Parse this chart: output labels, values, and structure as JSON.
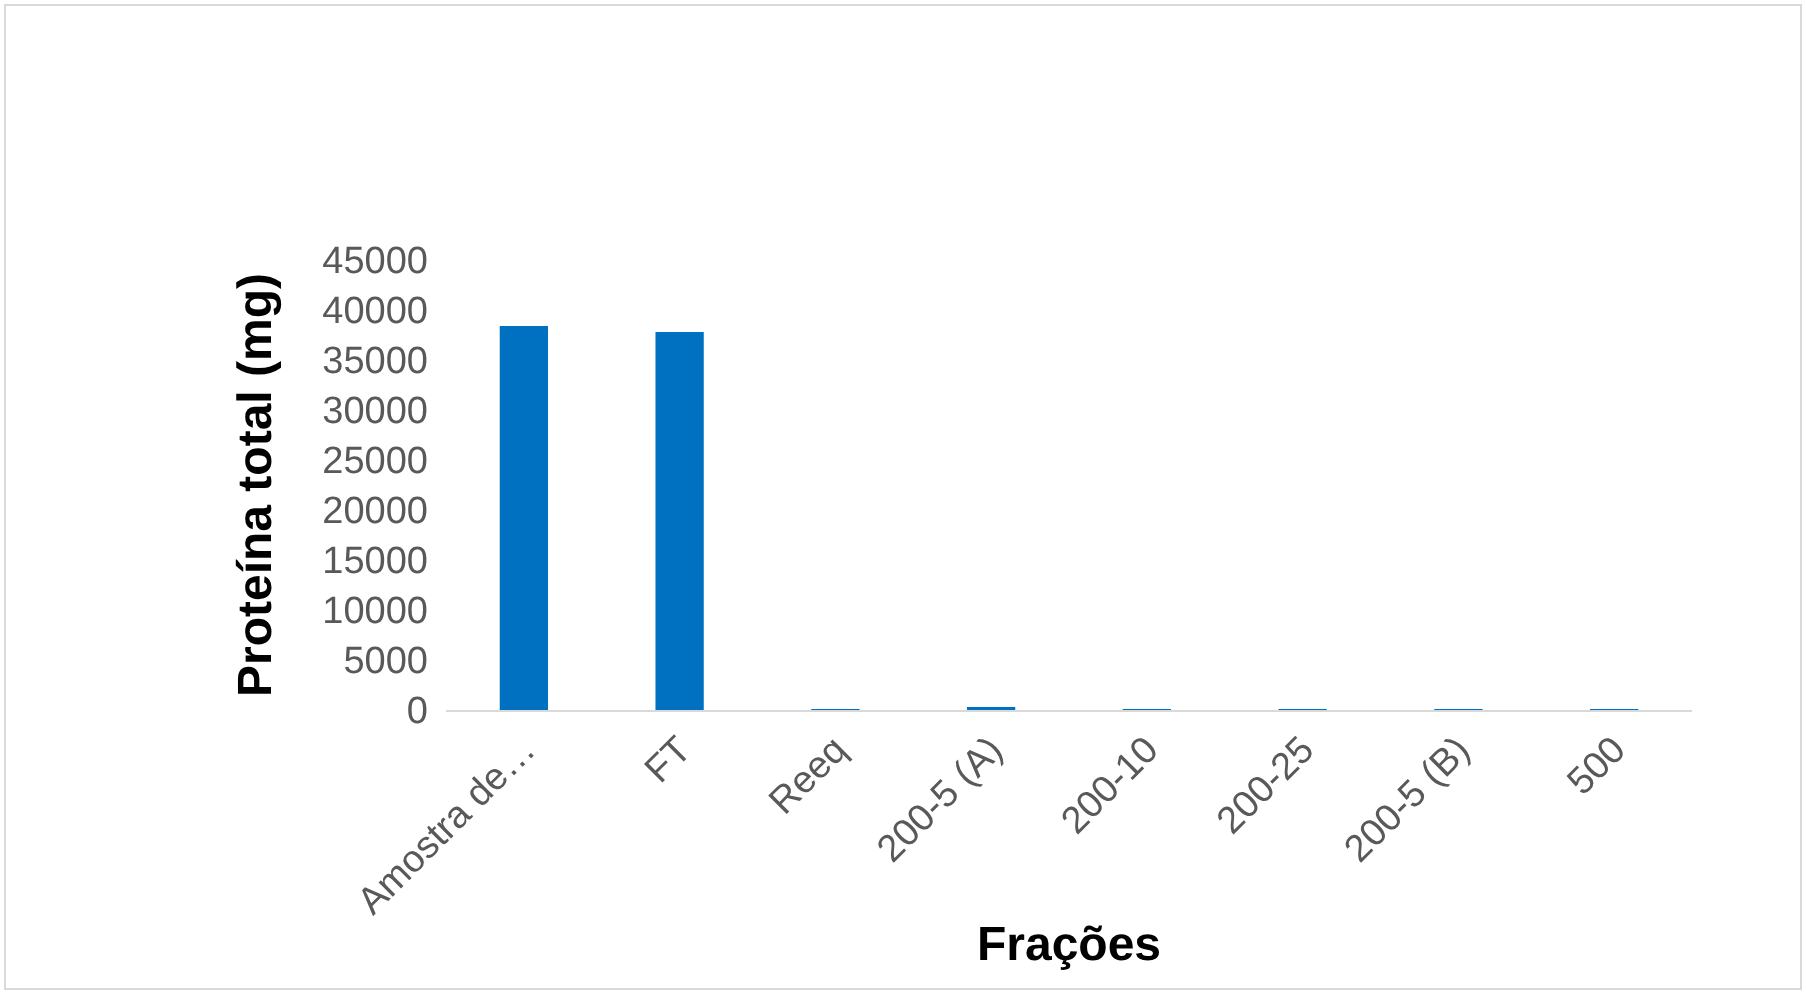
{
  "chart_data": {
    "type": "bar",
    "xlabel": "Frações",
    "ylabel": "Proteína total (mg)",
    "categories": [
      "Amostra de…",
      "FT",
      "Reeq",
      "200-5 (A)",
      "200-10",
      "200-25",
      "200-5 (B)",
      "500"
    ],
    "values": [
      38400,
      37800,
      100,
      300,
      100,
      100,
      100,
      100
    ],
    "color": "#0070c0",
    "ylim": [
      0,
      45000
    ],
    "yticks": [
      0,
      5000,
      10000,
      15000,
      20000,
      25000,
      30000,
      35000,
      40000,
      45000
    ],
    "grid": false
  }
}
